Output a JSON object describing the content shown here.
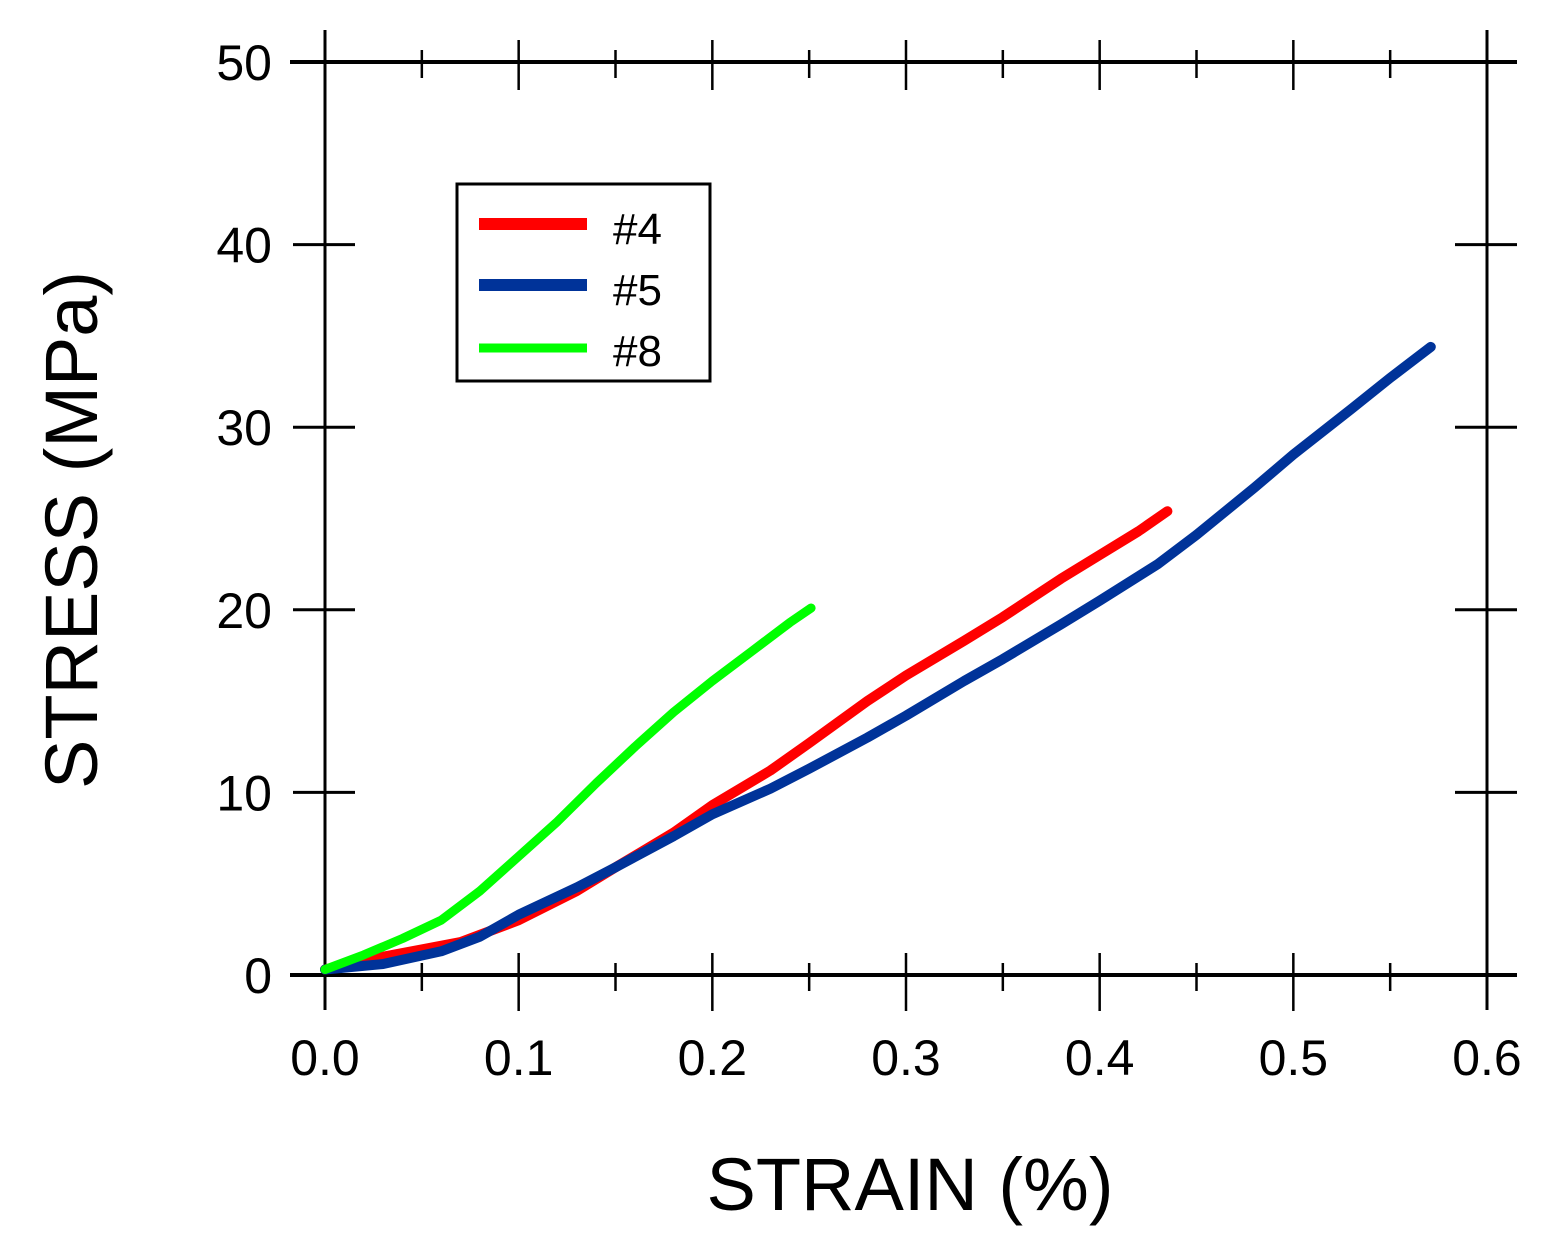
{
  "chart_data": {
    "type": "line",
    "title": "",
    "xlabel": "STRAIN (%)",
    "ylabel": "STRESS (MPa)",
    "xlim": [
      0.0,
      0.6
    ],
    "ylim": [
      0,
      50
    ],
    "x_ticks": [
      "0.0",
      "0.1",
      "0.2",
      "0.3",
      "0.4",
      "0.5",
      "0.6"
    ],
    "y_ticks": [
      "0",
      "10",
      "20",
      "30",
      "40",
      "50"
    ],
    "x_minor_step": 0.05,
    "grid": false,
    "frame": "box with ticks on all four sides",
    "legend_position": "upper left (inside plot)",
    "series": [
      {
        "name": "#4",
        "color": "#ff0000",
        "points": [
          [
            0.0,
            0.3
          ],
          [
            0.02,
            0.8
          ],
          [
            0.05,
            1.4
          ],
          [
            0.07,
            1.8
          ],
          [
            0.1,
            3.0
          ],
          [
            0.13,
            4.6
          ],
          [
            0.15,
            5.9
          ],
          [
            0.18,
            7.8
          ],
          [
            0.2,
            9.3
          ],
          [
            0.23,
            11.2
          ],
          [
            0.25,
            12.7
          ],
          [
            0.28,
            15.0
          ],
          [
            0.3,
            16.4
          ],
          [
            0.33,
            18.3
          ],
          [
            0.35,
            19.6
          ],
          [
            0.38,
            21.7
          ],
          [
            0.4,
            23.0
          ],
          [
            0.42,
            24.3
          ],
          [
            0.435,
            25.4
          ]
        ]
      },
      {
        "name": "#5",
        "color": "#003399",
        "points": [
          [
            0.0,
            0.3
          ],
          [
            0.03,
            0.6
          ],
          [
            0.06,
            1.3
          ],
          [
            0.08,
            2.1
          ],
          [
            0.1,
            3.3
          ],
          [
            0.13,
            4.8
          ],
          [
            0.15,
            5.9
          ],
          [
            0.18,
            7.6
          ],
          [
            0.2,
            8.8
          ],
          [
            0.23,
            10.2
          ],
          [
            0.25,
            11.3
          ],
          [
            0.28,
            13.0
          ],
          [
            0.3,
            14.2
          ],
          [
            0.33,
            16.1
          ],
          [
            0.35,
            17.3
          ],
          [
            0.38,
            19.2
          ],
          [
            0.4,
            20.5
          ],
          [
            0.43,
            22.5
          ],
          [
            0.45,
            24.1
          ],
          [
            0.48,
            26.7
          ],
          [
            0.5,
            28.5
          ],
          [
            0.53,
            31.0
          ],
          [
            0.55,
            32.7
          ],
          [
            0.571,
            34.4
          ]
        ]
      },
      {
        "name": "#8",
        "color": "#00ff00",
        "points": [
          [
            0.0,
            0.3
          ],
          [
            0.02,
            1.1
          ],
          [
            0.04,
            2.0
          ],
          [
            0.06,
            3.0
          ],
          [
            0.08,
            4.6
          ],
          [
            0.1,
            6.5
          ],
          [
            0.12,
            8.4
          ],
          [
            0.14,
            10.5
          ],
          [
            0.16,
            12.5
          ],
          [
            0.18,
            14.4
          ],
          [
            0.2,
            16.1
          ],
          [
            0.22,
            17.7
          ],
          [
            0.24,
            19.3
          ],
          [
            0.251,
            20.1
          ]
        ]
      }
    ]
  },
  "legend": {
    "items": [
      {
        "label": "#4",
        "color": "#ff0000"
      },
      {
        "label": "#5",
        "color": "#003399"
      },
      {
        "label": "#8",
        "color": "#00ff00"
      }
    ]
  },
  "axes": {
    "x_title": "STRAIN (%)",
    "y_title": "STRESS (MPa)"
  }
}
